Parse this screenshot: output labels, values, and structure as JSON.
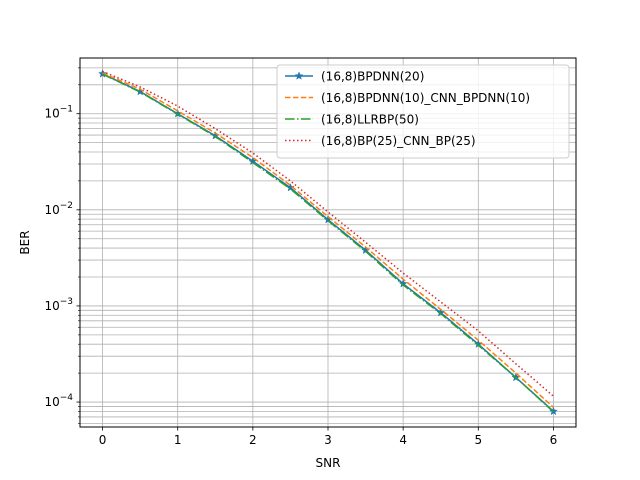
{
  "chart_data": {
    "type": "line",
    "xlabel": "SNR",
    "ylabel": "BER",
    "yscale": "log",
    "xlim": [
      -0.3,
      6.3
    ],
    "ylim": [
      5.5e-05,
      0.38
    ],
    "xticks": [
      0,
      1,
      2,
      3,
      4,
      5,
      6
    ],
    "yticks": [
      {
        "value": 0.1,
        "base": "10",
        "exp": "−1"
      },
      {
        "value": 0.01,
        "base": "10",
        "exp": "−2"
      },
      {
        "value": 0.001,
        "base": "10",
        "exp": "−3"
      },
      {
        "value": 0.0001,
        "base": "10",
        "exp": "−4"
      }
    ],
    "grid": true,
    "legend_position": "top-right",
    "x": [
      0,
      0.5,
      1,
      1.5,
      2,
      2.5,
      3,
      3.5,
      4,
      4.5,
      5,
      5.5,
      6
    ],
    "series": [
      {
        "name": "(16,8)BPDNN(20)",
        "color": "#1f77b4",
        "style": "solid",
        "marker": "star",
        "values": [
          0.26,
          0.17,
          0.1,
          0.059,
          0.032,
          0.017,
          0.0079,
          0.0038,
          0.0017,
          0.00085,
          0.0004,
          0.00018,
          8e-05
        ]
      },
      {
        "name": "(16,8)BPDNN(10)_CNN_BPDNN(10)",
        "color": "#ff7f0e",
        "style": "dashed",
        "marker": "none",
        "values": [
          0.265,
          0.18,
          0.107,
          0.063,
          0.035,
          0.018,
          0.0085,
          0.0041,
          0.0019,
          0.00092,
          0.00044,
          0.0002,
          8.8e-05
        ]
      },
      {
        "name": "(16,8)LLRBP(50)",
        "color": "#2ca02c",
        "style": "dashdot",
        "marker": "none",
        "values": [
          0.258,
          0.168,
          0.099,
          0.058,
          0.031,
          0.0165,
          0.0077,
          0.0037,
          0.00165,
          0.00083,
          0.00039,
          0.00018,
          7.9e-05
        ]
      },
      {
        "name": "(16,8)BP(25)_CNN_BP(25)",
        "color": "#d62728",
        "style": "dotted",
        "marker": "none",
        "values": [
          0.275,
          0.19,
          0.12,
          0.07,
          0.039,
          0.02,
          0.0095,
          0.0046,
          0.0022,
          0.0011,
          0.00055,
          0.00025,
          0.000115
        ]
      }
    ]
  }
}
